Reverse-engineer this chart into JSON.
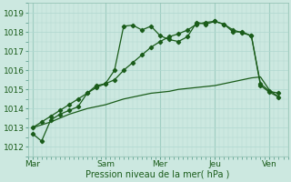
{
  "title": "",
  "xlabel": "Pression niveau de la mer( hPa )",
  "ylim": [
    1011.5,
    1019.5
  ],
  "yticks": [
    1012,
    1013,
    1014,
    1015,
    1016,
    1017,
    1018,
    1019
  ],
  "bg_color": "#cce8e0",
  "grid_color": "#b0d8d0",
  "line_color": "#1a5c1a",
  "xtick_labels": [
    "Mar",
    "Sam",
    "Mer",
    "Jeu",
    "Ven"
  ],
  "xtick_positions": [
    0,
    16,
    28,
    40,
    52
  ],
  "total_points": 56,
  "series1": {
    "x": [
      0,
      2,
      4,
      6,
      8,
      10,
      12,
      14,
      16,
      18,
      20,
      22,
      24,
      26,
      28,
      30,
      32,
      34,
      36,
      38,
      40,
      42,
      44,
      46,
      48,
      50,
      52,
      54
    ],
    "y": [
      1012.7,
      1012.3,
      1013.4,
      1013.7,
      1013.9,
      1014.1,
      1014.8,
      1015.2,
      1015.3,
      1016.0,
      1018.3,
      1018.35,
      1018.1,
      1018.3,
      1017.8,
      1017.6,
      1017.5,
      1017.75,
      1018.5,
      1018.4,
      1018.55,
      1018.4,
      1018.0,
      1018.0,
      1017.8,
      1015.3,
      1014.9,
      1014.8
    ],
    "marker": true
  },
  "series2": {
    "x": [
      0,
      2,
      4,
      6,
      8,
      10,
      12,
      14,
      16,
      18,
      20,
      22,
      24,
      26,
      28,
      30,
      32,
      34,
      36,
      38,
      40,
      42,
      44,
      46,
      48,
      50,
      52,
      54
    ],
    "y": [
      1013.0,
      1013.15,
      1013.3,
      1013.5,
      1013.7,
      1013.85,
      1014.0,
      1014.1,
      1014.2,
      1014.35,
      1014.5,
      1014.6,
      1014.7,
      1014.8,
      1014.85,
      1014.9,
      1015.0,
      1015.05,
      1015.1,
      1015.15,
      1015.2,
      1015.3,
      1015.4,
      1015.5,
      1015.6,
      1015.65,
      1014.95,
      1014.6
    ],
    "marker": false
  },
  "series3": {
    "x": [
      0,
      2,
      4,
      6,
      8,
      10,
      12,
      14,
      16,
      18,
      20,
      22,
      24,
      26,
      28,
      30,
      32,
      34,
      36,
      38,
      40,
      42,
      44,
      46,
      48,
      50,
      52,
      54
    ],
    "y": [
      1013.0,
      1013.3,
      1013.6,
      1013.9,
      1014.2,
      1014.5,
      1014.8,
      1015.1,
      1015.3,
      1015.5,
      1016.0,
      1016.4,
      1016.8,
      1017.2,
      1017.5,
      1017.75,
      1017.9,
      1018.1,
      1018.4,
      1018.5,
      1018.55,
      1018.4,
      1018.1,
      1017.95,
      1017.8,
      1015.2,
      1014.85,
      1014.6
    ],
    "marker": true
  },
  "vline_color": "#80b8a8",
  "xlabel_color": "#1a5c1a",
  "tick_color": "#1a5c1a"
}
